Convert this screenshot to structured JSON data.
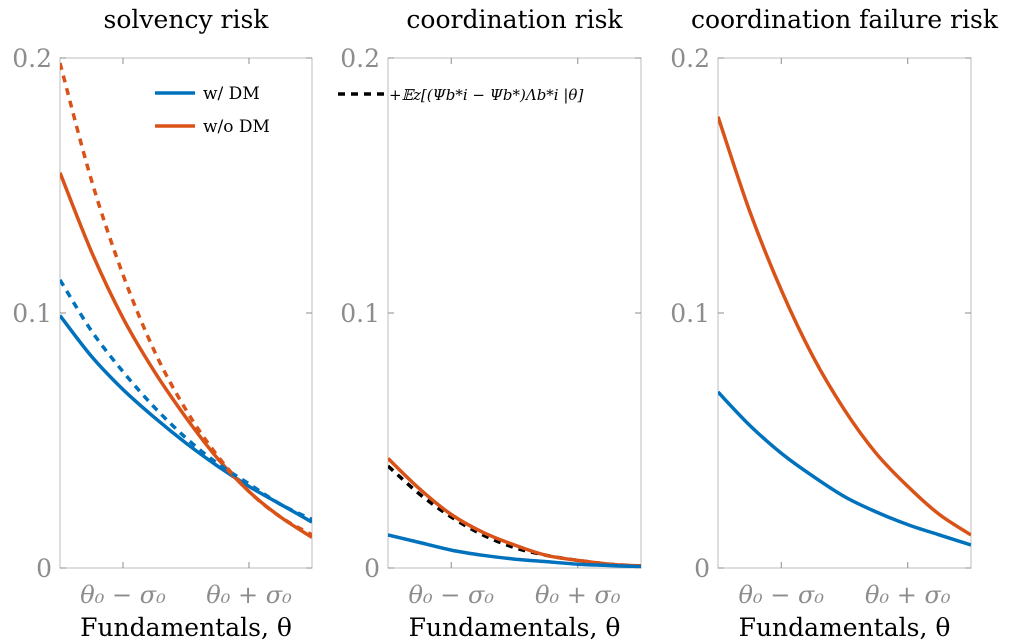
{
  "chart_data": [
    {
      "type": "line",
      "title": "solvency risk",
      "xlabel": "Fundamentals, θ",
      "ylabel": "",
      "xlim": [
        -2,
        2
      ],
      "ylim": [
        0,
        0.2
      ],
      "xtick_labels": [
        "θ₀ − σ₀",
        "θ₀ + σ₀"
      ],
      "ytick_labels": [
        "0",
        "0.1",
        "0.2"
      ],
      "x": [
        -2,
        -1.5,
        -1,
        -0.5,
        0,
        0.5,
        1,
        1.5,
        2
      ],
      "legend": {
        "placement": "top-right"
      },
      "series": [
        {
          "name": "w/ DM",
          "style": "solid",
          "color": "#0072BD",
          "values": [
            0.099,
            0.083,
            0.07,
            0.059,
            0.049,
            0.04,
            0.032,
            0.025,
            0.018
          ]
        },
        {
          "name": "w/o DM",
          "style": "solid",
          "color": "#D95319",
          "values": [
            0.155,
            0.124,
            0.098,
            0.077,
            0.059,
            0.043,
            0.03,
            0.02,
            0.012
          ]
        },
        {
          "style": "dashed",
          "color": "#0072BD",
          "values": [
            0.113,
            0.093,
            0.077,
            0.063,
            0.051,
            0.041,
            0.033,
            0.025,
            0.019
          ]
        },
        {
          "style": "dashed",
          "color": "#D95319",
          "values": [
            0.198,
            0.152,
            0.115,
            0.085,
            0.062,
            0.044,
            0.03,
            0.02,
            0.013
          ]
        }
      ]
    },
    {
      "type": "line",
      "title": "coordination risk",
      "xlabel": "Fundamentals, θ",
      "ylabel": "",
      "xlim": [
        -2,
        2
      ],
      "ylim": [
        0,
        0.2
      ],
      "xtick_labels": [
        "θ₀ − σ₀",
        "θ₀ + σ₀"
      ],
      "ytick_labels": [
        "0",
        "0.1",
        "0.2"
      ],
      "x": [
        -2,
        -1.5,
        -1,
        -0.5,
        0,
        0.5,
        1,
        1.5,
        2
      ],
      "legend": {
        "placement": "top-left"
      },
      "series": [
        {
          "name": "+𝔼z[(Ψb*i − Ψb*)Λb*i |θ]",
          "style": "dashed",
          "color": "#000000",
          "values": [
            0.04,
            0.029,
            0.02,
            0.013,
            0.008,
            0.005,
            0.003,
            0.0015,
            0.0008
          ]
        },
        {
          "style": "solid",
          "color": "#D95319",
          "values": [
            0.043,
            0.031,
            0.021,
            0.014,
            0.009,
            0.005,
            0.003,
            0.0015,
            0.0008
          ]
        },
        {
          "style": "solid",
          "color": "#0072BD",
          "values": [
            0.013,
            0.01,
            0.007,
            0.005,
            0.0035,
            0.0025,
            0.0015,
            0.001,
            0.0005
          ]
        }
      ]
    },
    {
      "type": "line",
      "title": "coordination failure risk",
      "xlabel": "Fundamentals, θ",
      "ylabel": "",
      "xlim": [
        -2,
        2
      ],
      "ylim": [
        0,
        0.2
      ],
      "xtick_labels": [
        "θ₀ − σ₀",
        "θ₀ + σ₀"
      ],
      "ytick_labels": [
        "0",
        "0.1",
        "0.2"
      ],
      "x": [
        -2,
        -1.5,
        -1,
        -0.5,
        0,
        0.5,
        1,
        1.5,
        2
      ],
      "series": [
        {
          "style": "solid",
          "color": "#D95319",
          "values": [
            0.177,
            0.14,
            0.109,
            0.083,
            0.062,
            0.045,
            0.032,
            0.021,
            0.013
          ]
        },
        {
          "style": "solid",
          "color": "#0072BD",
          "values": [
            0.069,
            0.056,
            0.045,
            0.036,
            0.028,
            0.022,
            0.017,
            0.013,
            0.009
          ]
        }
      ]
    }
  ]
}
